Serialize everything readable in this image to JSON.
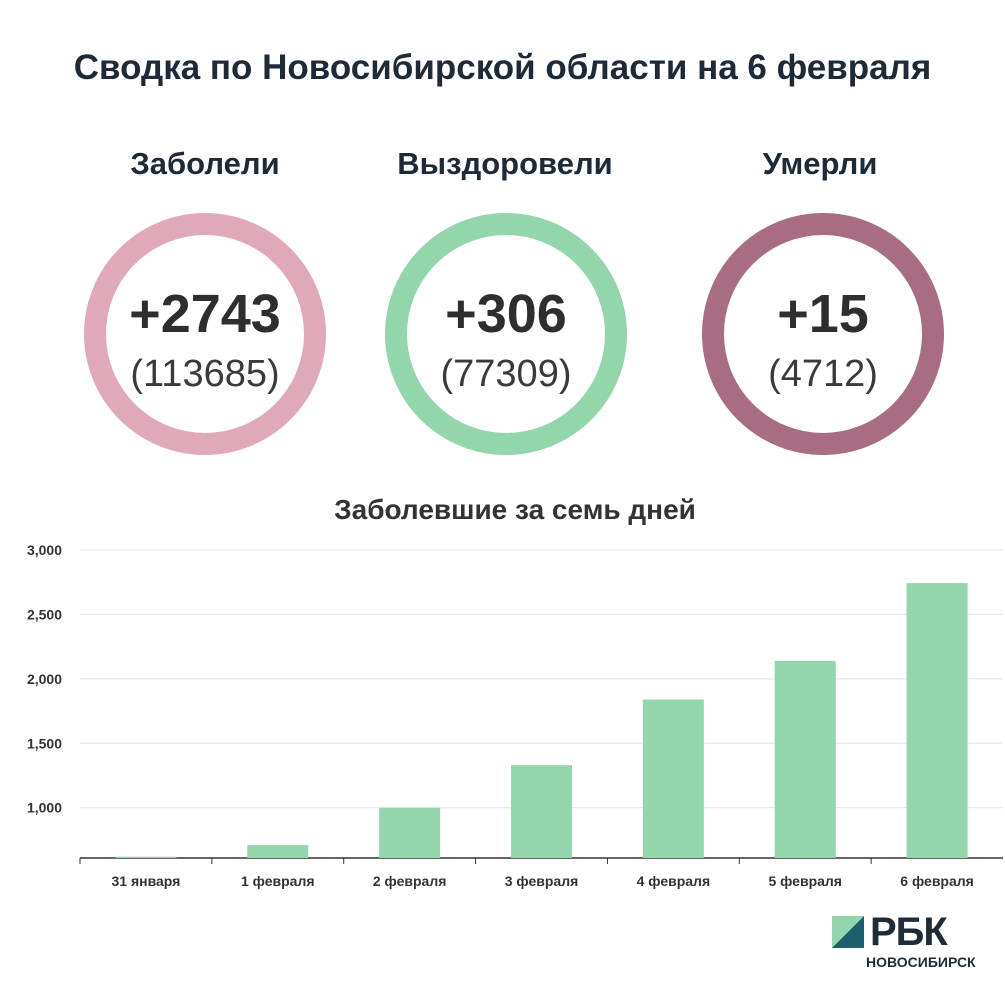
{
  "title": "Сводка по Новосибирской области на 6 февраля",
  "stats": [
    {
      "label": "Заболели",
      "delta": "+2743",
      "total": "(113685)",
      "color": "#dfa9ba"
    },
    {
      "label": "Выздоровели",
      "delta": "+306",
      "total": "(77309)",
      "color": "#93d6ab"
    },
    {
      "label": "Умерли",
      "delta": "+15",
      "total": "(4712)",
      "color": "#a86d82"
    }
  ],
  "chart_data": {
    "type": "bar",
    "title": "Заболевшие за семь дней",
    "categories": [
      "31 января",
      "1 февраля",
      "2 февраля",
      "3 февраля",
      "4 февраля",
      "5 февраля",
      "6 февраля"
    ],
    "values": [
      620,
      710,
      1000,
      1330,
      1840,
      2140,
      2743
    ],
    "ylim": [
      610,
      3000
    ],
    "yticks": [
      "1,000",
      "1,500",
      "2,000",
      "2,500",
      "3,000"
    ],
    "ytick_values": [
      1000,
      1500,
      2000,
      2500,
      3000
    ],
    "bar_color": "#93d6ab",
    "grid": true
  },
  "logo": {
    "name": "РБК",
    "sub": "НОВОСИБИРСК",
    "colors": [
      "#93d6ab",
      "#1f5f6e"
    ]
  }
}
